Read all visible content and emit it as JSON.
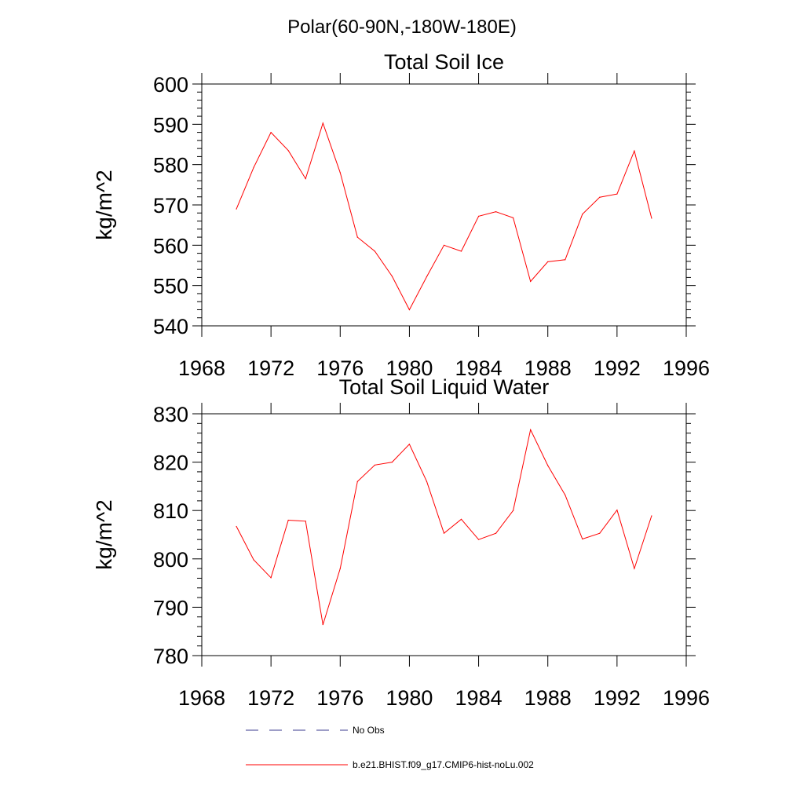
{
  "figure": {
    "title": "Polar(60-90N,-180W-180E)"
  },
  "chart_data": [
    {
      "type": "line",
      "title": "Total Soil Ice",
      "xlabel": "",
      "ylabel": "kg/m^2",
      "xlim": [
        1968,
        1996
      ],
      "ylim": [
        540,
        600
      ],
      "xticks": [
        1968,
        1972,
        1976,
        1980,
        1984,
        1988,
        1992,
        1996
      ],
      "yticks": [
        540,
        550,
        560,
        570,
        580,
        590,
        600
      ],
      "grid": false,
      "series": [
        {
          "name": "b.e21.BHIST.f09_g17.CMIP6-hist-noLu.002",
          "color": "#ff0000",
          "x": [
            1970,
            1971,
            1972,
            1973,
            1974,
            1975,
            1976,
            1977,
            1978,
            1979,
            1980,
            1981,
            1982,
            1983,
            1984,
            1985,
            1986,
            1987,
            1988,
            1989,
            1990,
            1991,
            1992,
            1993,
            1994
          ],
          "values": [
            569.0,
            579.3,
            588.0,
            583.5,
            576.5,
            590.3,
            578.0,
            562.0,
            558.5,
            552.3,
            544.0,
            552.2,
            560.0,
            558.5,
            567.2,
            568.3,
            566.8,
            551.0,
            555.9,
            556.4,
            567.7,
            571.9,
            572.7,
            583.4,
            566.7
          ]
        }
      ]
    },
    {
      "type": "line",
      "title": "Total Soil Liquid Water",
      "xlabel": "",
      "ylabel": "kg/m^2",
      "xlim": [
        1968,
        1996
      ],
      "ylim": [
        780,
        830
      ],
      "xticks": [
        1968,
        1972,
        1976,
        1980,
        1984,
        1988,
        1992,
        1996
      ],
      "yticks": [
        780,
        790,
        800,
        810,
        820,
        830
      ],
      "grid": false,
      "series": [
        {
          "name": "b.e21.BHIST.f09_g17.CMIP6-hist-noLu.002",
          "color": "#ff0000",
          "x": [
            1970,
            1971,
            1972,
            1973,
            1974,
            1975,
            1976,
            1977,
            1978,
            1979,
            1980,
            1981,
            1982,
            1983,
            1984,
            1985,
            1986,
            1987,
            1988,
            1989,
            1990,
            1991,
            1992,
            1993,
            1994
          ],
          "values": [
            806.7,
            799.8,
            796.1,
            808.0,
            807.8,
            786.4,
            798.0,
            816.0,
            819.4,
            820.0,
            823.7,
            816.0,
            805.3,
            808.2,
            804.0,
            805.3,
            810.0,
            826.7,
            819.3,
            813.2,
            804.1,
            805.3,
            810.1,
            798.0,
            808.9
          ]
        }
      ]
    }
  ],
  "legend": {
    "placement": "bottom",
    "entries": [
      {
        "label": "No Obs",
        "color": "#3b3b8f",
        "style": "dashed"
      },
      {
        "label": "b.e21.BHIST.f09_g17.CMIP6-hist-noLu.002",
        "color": "#ff0000",
        "style": "solid"
      }
    ]
  }
}
